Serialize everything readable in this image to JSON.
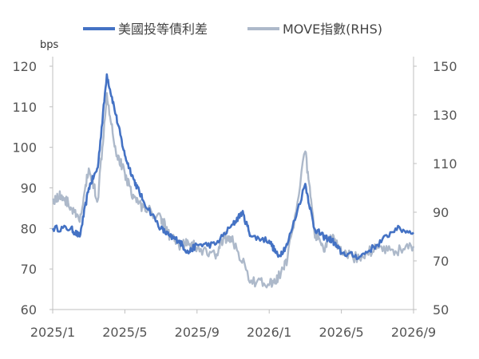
{
  "chart_data": {
    "type": "line",
    "unit_label": "bps",
    "x_ticks": [
      "2025/1",
      "2025/5",
      "2025/9",
      "2026/1",
      "2026/5",
      "2026/9"
    ],
    "x_range": [
      "2025/1",
      "2026/9"
    ],
    "y_left": {
      "range": [
        60,
        120
      ],
      "ticks": [
        60,
        70,
        80,
        90,
        100,
        110,
        120
      ]
    },
    "y_right": {
      "range": [
        50,
        150
      ],
      "ticks": [
        50,
        70,
        90,
        110,
        130,
        150
      ]
    },
    "grid": false,
    "legend_position": "top",
    "series": [
      {
        "name": "美國投等債利差",
        "axis": "left",
        "color": "#4472C4",
        "points": [
          [
            "2025/1",
            80
          ],
          [
            "2025/2",
            80
          ],
          [
            "2025/2.5",
            78
          ],
          [
            "2025/3",
            90
          ],
          [
            "2025/3.5",
            95
          ],
          [
            "2025/4",
            118
          ],
          [
            "2025/4.5",
            108
          ],
          [
            "2025/5",
            98
          ],
          [
            "2025/5.5",
            92
          ],
          [
            "2025/6",
            87
          ],
          [
            "2025/7",
            80
          ],
          [
            "2025/7.5",
            78
          ],
          [
            "2025/8",
            77
          ],
          [
            "2025/8.5",
            74
          ],
          [
            "2025/9",
            76
          ],
          [
            "2025/10",
            76
          ],
          [
            "2025/11",
            81
          ],
          [
            "2025/11.5",
            84
          ],
          [
            "2025/12",
            78
          ],
          [
            "2026/1",
            77
          ],
          [
            "2026/1.5",
            73
          ],
          [
            "2026/2",
            76
          ],
          [
            "2026/3",
            91
          ],
          [
            "2026/3.5",
            80
          ],
          [
            "2026/4",
            78
          ],
          [
            "2026/4.5",
            77
          ],
          [
            "2026/5",
            74
          ],
          [
            "2026/6",
            73
          ],
          [
            "2026/7",
            76
          ],
          [
            "2026/8",
            80
          ],
          [
            "2026/9",
            79
          ]
        ]
      },
      {
        "name": "MOVE指數(RHS)",
        "axis": "right",
        "color": "#ADB9CA",
        "points": [
          [
            "2025/1",
            95
          ],
          [
            "2025/1.5",
            97
          ],
          [
            "2025/2",
            92
          ],
          [
            "2025/2.5",
            86
          ],
          [
            "2025/3",
            108
          ],
          [
            "2025/3.5",
            95
          ],
          [
            "2025/4",
            139
          ],
          [
            "2025/4.5",
            115
          ],
          [
            "2025/5",
            106
          ],
          [
            "2025/5.5",
            96
          ],
          [
            "2025/6",
            92
          ],
          [
            "2025/7",
            88
          ],
          [
            "2025/7.5",
            80
          ],
          [
            "2025/8",
            76
          ],
          [
            "2025/8.5",
            78
          ],
          [
            "2025/9",
            75
          ],
          [
            "2025/10",
            72
          ],
          [
            "2025/10.5",
            80
          ],
          [
            "2025/11",
            78
          ],
          [
            "2025/12",
            62
          ],
          [
            "2026/1",
            60
          ],
          [
            "2026/1.5",
            63
          ],
          [
            "2026/2",
            70
          ],
          [
            "2026/3",
            115
          ],
          [
            "2026/3.5",
            82
          ],
          [
            "2026/4",
            75
          ],
          [
            "2026/4.5",
            80
          ],
          [
            "2026/5",
            73
          ],
          [
            "2026/6",
            71
          ],
          [
            "2026/7",
            76
          ],
          [
            "2026/8",
            74
          ],
          [
            "2026/9",
            76
          ]
        ]
      }
    ]
  }
}
